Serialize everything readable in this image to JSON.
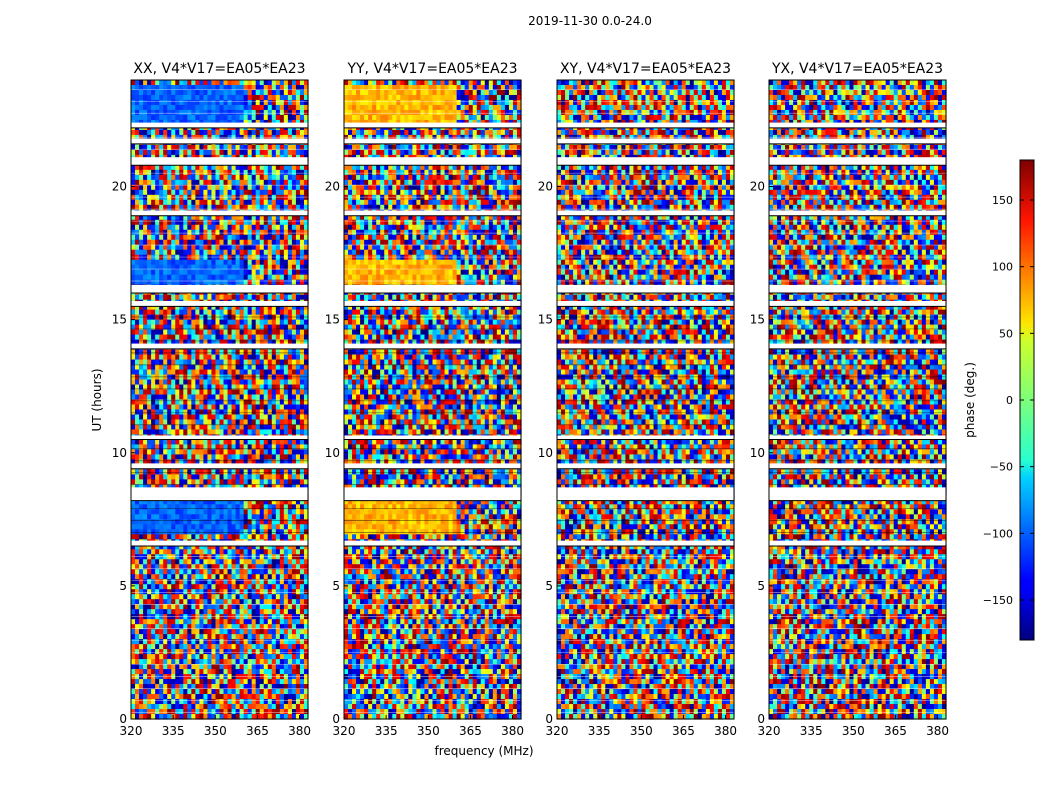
{
  "figure": {
    "suptitle": "2019-11-30 0.0-24.0",
    "xlabel": "frequency (MHz)",
    "ylabel": "UT (hours)",
    "colorbar_label": "phase (deg.)"
  },
  "chart_data": {
    "type": "heatmap",
    "suptitle": "2019-11-30 0.0-24.0",
    "colormap": "jet",
    "xlim": [
      320,
      383
    ],
    "ylim": [
      0,
      24
    ],
    "xticks": [
      320,
      335,
      350,
      365,
      380
    ],
    "yticks": [
      0,
      5,
      10,
      15,
      20
    ],
    "xlabel": "frequency (MHz)",
    "ylabel": "UT (hours)",
    "colorbar": {
      "label": "phase (deg.)",
      "range": [
        -180,
        180
      ],
      "ticks": [
        -150,
        -100,
        -50,
        0,
        50,
        100,
        150
      ]
    },
    "panels": [
      {
        "title": "XX, V4*V17=EA05*EA23",
        "bandpass_phase": -100
      },
      {
        "title": "YY, V4*V17=EA05*EA23",
        "bandpass_phase": 70
      },
      {
        "title": "XY, V4*V17=EA05*EA23",
        "bandpass_phase": null
      },
      {
        "title": "YX, V4*V17=EA05*EA23",
        "bandpass_phase": null
      }
    ],
    "flagged_time_ranges_hours": [
      [
        8.2,
        8.7
      ],
      [
        6.5,
        6.7
      ],
      [
        9.4,
        9.6
      ],
      [
        10.5,
        10.65
      ],
      [
        13.9,
        14.1
      ],
      [
        15.5,
        15.7
      ],
      [
        16.0,
        16.3
      ],
      [
        18.9,
        19.1
      ],
      [
        20.8,
        21.1
      ],
      [
        21.6,
        21.8
      ],
      [
        22.2,
        22.4
      ]
    ]
  }
}
